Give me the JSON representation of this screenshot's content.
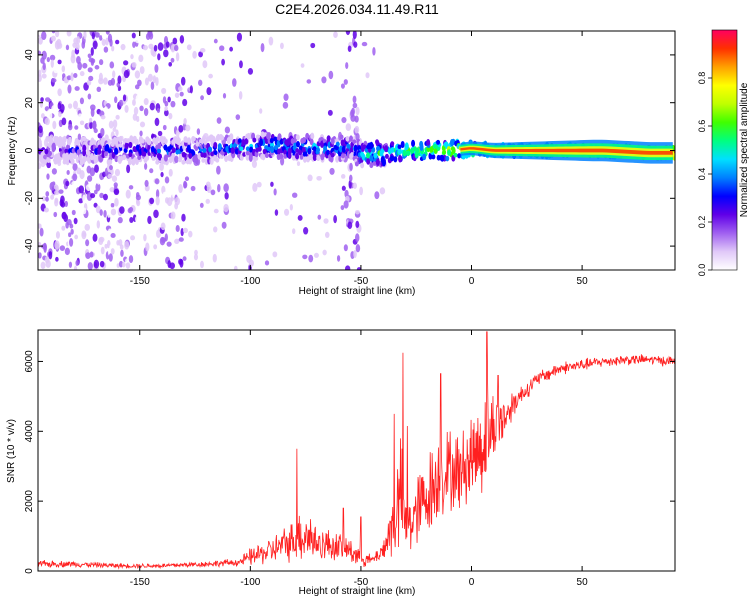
{
  "title": "C2E4.2026.034.11.49.R11",
  "chart_data": [
    {
      "type": "heatmap",
      "title": "C2E4.2026.034.11.49.R11",
      "xlabel": "Height of straight line (km)",
      "ylabel": "Frequency (Hz)",
      "xlim": [
        -196,
        92
      ],
      "ylim": [
        -50,
        50
      ],
      "xticks": [
        -150,
        -100,
        -50,
        0,
        50
      ],
      "yticks": [
        -40,
        -20,
        0,
        20,
        40
      ],
      "colorbar": {
        "label": "Normalized spectral amplitude",
        "range": [
          0,
          1
        ],
        "ticks": [
          0.0,
          0.2,
          0.4,
          0.6,
          0.8
        ],
        "colors": [
          "#ffffff",
          "#e0c8f8",
          "#a060f0",
          "#6000e8",
          "#0000ff",
          "#0080ff",
          "#00e0ff",
          "#00ff80",
          "#40ff00",
          "#c0ff00",
          "#ffff00",
          "#ffa000",
          "#ff3000",
          "#ff0060"
        ]
      },
      "ridge": {
        "x": [
          -196,
          -150,
          -130,
          -110,
          -90,
          -70,
          -55,
          -50,
          -40,
          -30,
          -20,
          -10,
          0,
          10,
          25,
          40,
          60,
          80,
          92
        ],
        "frequency": [
          0,
          0,
          0,
          1,
          2,
          1,
          1,
          -2,
          -1,
          0,
          0,
          0,
          1,
          0,
          0,
          0,
          0,
          -1,
          -1
        ],
        "amplitude": [
          0.25,
          0.35,
          0.35,
          0.4,
          0.45,
          0.45,
          0.4,
          0.5,
          0.55,
          0.6,
          0.65,
          0.7,
          0.72,
          0.75,
          0.8,
          0.85,
          0.9,
          0.95,
          0.98
        ]
      }
    },
    {
      "type": "line",
      "xlabel": "Height of straight line (km)",
      "ylabel": "SNR (10 * v/v)",
      "xlim": [
        -196,
        92
      ],
      "ylim": [
        0,
        6900
      ],
      "xticks": [
        -150,
        -100,
        -50,
        0,
        50
      ],
      "yticks": [
        0,
        2000,
        4000,
        6000
      ],
      "color": "#ff2020",
      "series": [
        {
          "name": "SNR",
          "x": [
            -196,
            -180,
            -160,
            -140,
            -120,
            -105,
            -100,
            -90,
            -80,
            -75,
            -70,
            -60,
            -55,
            -50,
            -45,
            -40,
            -35,
            -32,
            -30,
            -25,
            -20,
            -15,
            -10,
            -5,
            0,
            5,
            7,
            10,
            15,
            20,
            25,
            30,
            40,
            50,
            60,
            70,
            80,
            92
          ],
          "base": [
            200,
            200,
            150,
            150,
            200,
            250,
            400,
            600,
            900,
            1100,
            800,
            700,
            600,
            400,
            300,
            600,
            1400,
            2200,
            1300,
            1600,
            2200,
            2600,
            2900,
            2800,
            3300,
            3600,
            3900,
            4100,
            4400,
            4900,
            5200,
            5500,
            5800,
            5900,
            6000,
            6050,
            6050,
            6000
          ],
          "noise": [
            130,
            100,
            80,
            80,
            100,
            130,
            300,
            450,
            700,
            1100,
            600,
            500,
            450,
            350,
            150,
            350,
            1300,
            2000,
            1000,
            1300,
            1400,
            1600,
            1400,
            1300,
            1500,
            1700,
            1800,
            1200,
            800,
            400,
            300,
            250,
            220,
            200,
            180,
            180,
            170,
            170
          ],
          "peaks": [
            [
              -79,
              3500
            ],
            [
              -58,
              1800
            ],
            [
              -50,
              1550
            ],
            [
              -35,
              4500
            ],
            [
              -31,
              6250
            ],
            [
              -29,
              4150
            ],
            [
              -14,
              5650
            ],
            [
              7,
              6850
            ],
            [
              12,
              5600
            ]
          ]
        }
      ]
    }
  ]
}
